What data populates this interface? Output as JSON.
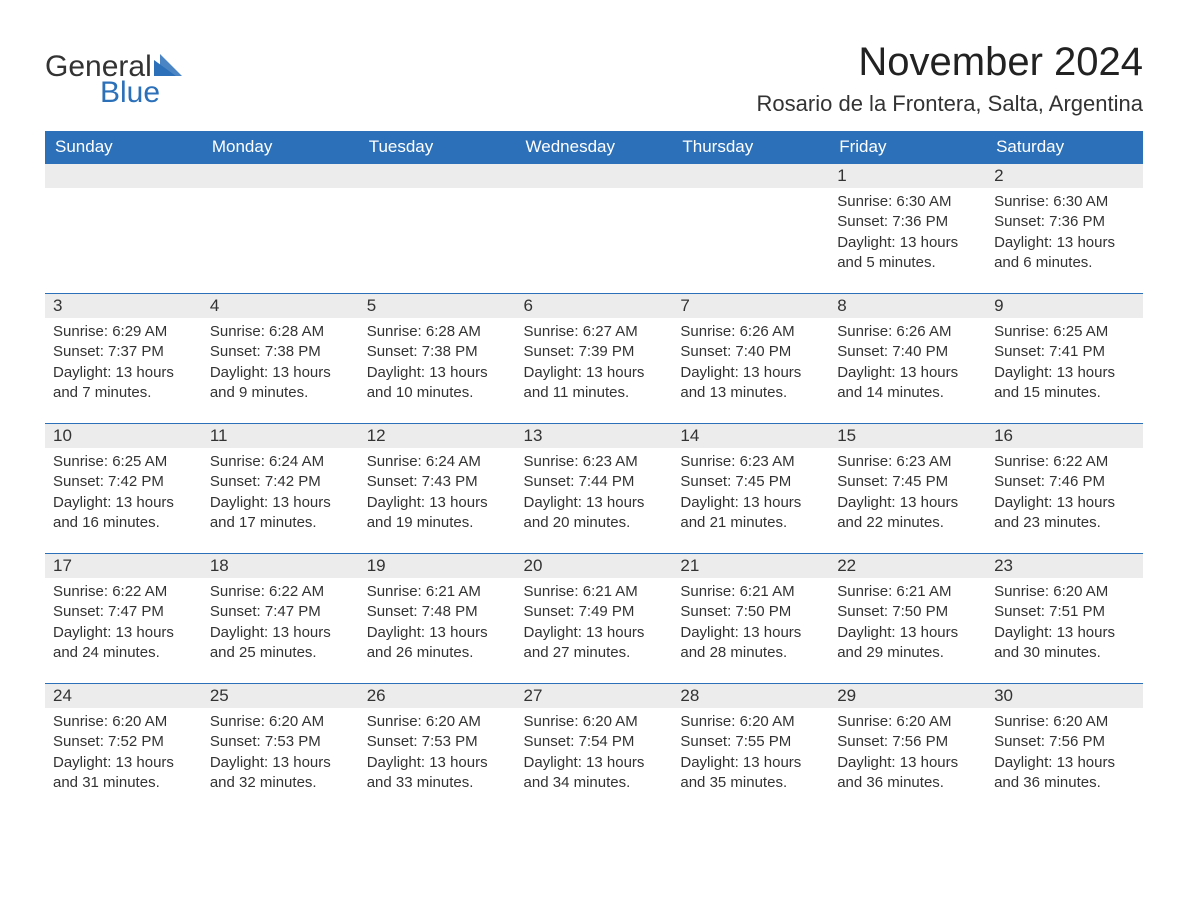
{
  "logo": {
    "text1": "General",
    "text2": "Blue",
    "triangle_color": "#2b70b8"
  },
  "title": "November 2024",
  "location": "Rosario de la Frontera, Salta, Argentina",
  "colors": {
    "header_bg": "#2b70b8",
    "header_fg": "#ffffff",
    "daynum_bg": "#ececec",
    "row_border": "#2b70b8",
    "text": "#333333",
    "bg": "#ffffff"
  },
  "day_labels": [
    "Sunday",
    "Monday",
    "Tuesday",
    "Wednesday",
    "Thursday",
    "Friday",
    "Saturday"
  ],
  "weeks": [
    [
      {
        "blank": true
      },
      {
        "blank": true
      },
      {
        "blank": true
      },
      {
        "blank": true
      },
      {
        "blank": true
      },
      {
        "n": "1",
        "sunrise": "6:30 AM",
        "sunset": "7:36 PM",
        "daylight": "13 hours and 5 minutes."
      },
      {
        "n": "2",
        "sunrise": "6:30 AM",
        "sunset": "7:36 PM",
        "daylight": "13 hours and 6 minutes."
      }
    ],
    [
      {
        "n": "3",
        "sunrise": "6:29 AM",
        "sunset": "7:37 PM",
        "daylight": "13 hours and 7 minutes."
      },
      {
        "n": "4",
        "sunrise": "6:28 AM",
        "sunset": "7:38 PM",
        "daylight": "13 hours and 9 minutes."
      },
      {
        "n": "5",
        "sunrise": "6:28 AM",
        "sunset": "7:38 PM",
        "daylight": "13 hours and 10 minutes."
      },
      {
        "n": "6",
        "sunrise": "6:27 AM",
        "sunset": "7:39 PM",
        "daylight": "13 hours and 11 minutes."
      },
      {
        "n": "7",
        "sunrise": "6:26 AM",
        "sunset": "7:40 PM",
        "daylight": "13 hours and 13 minutes."
      },
      {
        "n": "8",
        "sunrise": "6:26 AM",
        "sunset": "7:40 PM",
        "daylight": "13 hours and 14 minutes."
      },
      {
        "n": "9",
        "sunrise": "6:25 AM",
        "sunset": "7:41 PM",
        "daylight": "13 hours and 15 minutes."
      }
    ],
    [
      {
        "n": "10",
        "sunrise": "6:25 AM",
        "sunset": "7:42 PM",
        "daylight": "13 hours and 16 minutes."
      },
      {
        "n": "11",
        "sunrise": "6:24 AM",
        "sunset": "7:42 PM",
        "daylight": "13 hours and 17 minutes."
      },
      {
        "n": "12",
        "sunrise": "6:24 AM",
        "sunset": "7:43 PM",
        "daylight": "13 hours and 19 minutes."
      },
      {
        "n": "13",
        "sunrise": "6:23 AM",
        "sunset": "7:44 PM",
        "daylight": "13 hours and 20 minutes."
      },
      {
        "n": "14",
        "sunrise": "6:23 AM",
        "sunset": "7:45 PM",
        "daylight": "13 hours and 21 minutes."
      },
      {
        "n": "15",
        "sunrise": "6:23 AM",
        "sunset": "7:45 PM",
        "daylight": "13 hours and 22 minutes."
      },
      {
        "n": "16",
        "sunrise": "6:22 AM",
        "sunset": "7:46 PM",
        "daylight": "13 hours and 23 minutes."
      }
    ],
    [
      {
        "n": "17",
        "sunrise": "6:22 AM",
        "sunset": "7:47 PM",
        "daylight": "13 hours and 24 minutes."
      },
      {
        "n": "18",
        "sunrise": "6:22 AM",
        "sunset": "7:47 PM",
        "daylight": "13 hours and 25 minutes."
      },
      {
        "n": "19",
        "sunrise": "6:21 AM",
        "sunset": "7:48 PM",
        "daylight": "13 hours and 26 minutes."
      },
      {
        "n": "20",
        "sunrise": "6:21 AM",
        "sunset": "7:49 PM",
        "daylight": "13 hours and 27 minutes."
      },
      {
        "n": "21",
        "sunrise": "6:21 AM",
        "sunset": "7:50 PM",
        "daylight": "13 hours and 28 minutes."
      },
      {
        "n": "22",
        "sunrise": "6:21 AM",
        "sunset": "7:50 PM",
        "daylight": "13 hours and 29 minutes."
      },
      {
        "n": "23",
        "sunrise": "6:20 AM",
        "sunset": "7:51 PM",
        "daylight": "13 hours and 30 minutes."
      }
    ],
    [
      {
        "n": "24",
        "sunrise": "6:20 AM",
        "sunset": "7:52 PM",
        "daylight": "13 hours and 31 minutes."
      },
      {
        "n": "25",
        "sunrise": "6:20 AM",
        "sunset": "7:53 PM",
        "daylight": "13 hours and 32 minutes."
      },
      {
        "n": "26",
        "sunrise": "6:20 AM",
        "sunset": "7:53 PM",
        "daylight": "13 hours and 33 minutes."
      },
      {
        "n": "27",
        "sunrise": "6:20 AM",
        "sunset": "7:54 PM",
        "daylight": "13 hours and 34 minutes."
      },
      {
        "n": "28",
        "sunrise": "6:20 AM",
        "sunset": "7:55 PM",
        "daylight": "13 hours and 35 minutes."
      },
      {
        "n": "29",
        "sunrise": "6:20 AM",
        "sunset": "7:56 PM",
        "daylight": "13 hours and 36 minutes."
      },
      {
        "n": "30",
        "sunrise": "6:20 AM",
        "sunset": "7:56 PM",
        "daylight": "13 hours and 36 minutes."
      }
    ]
  ],
  "labels": {
    "sunrise": "Sunrise:",
    "sunset": "Sunset:",
    "daylight": "Daylight:"
  }
}
